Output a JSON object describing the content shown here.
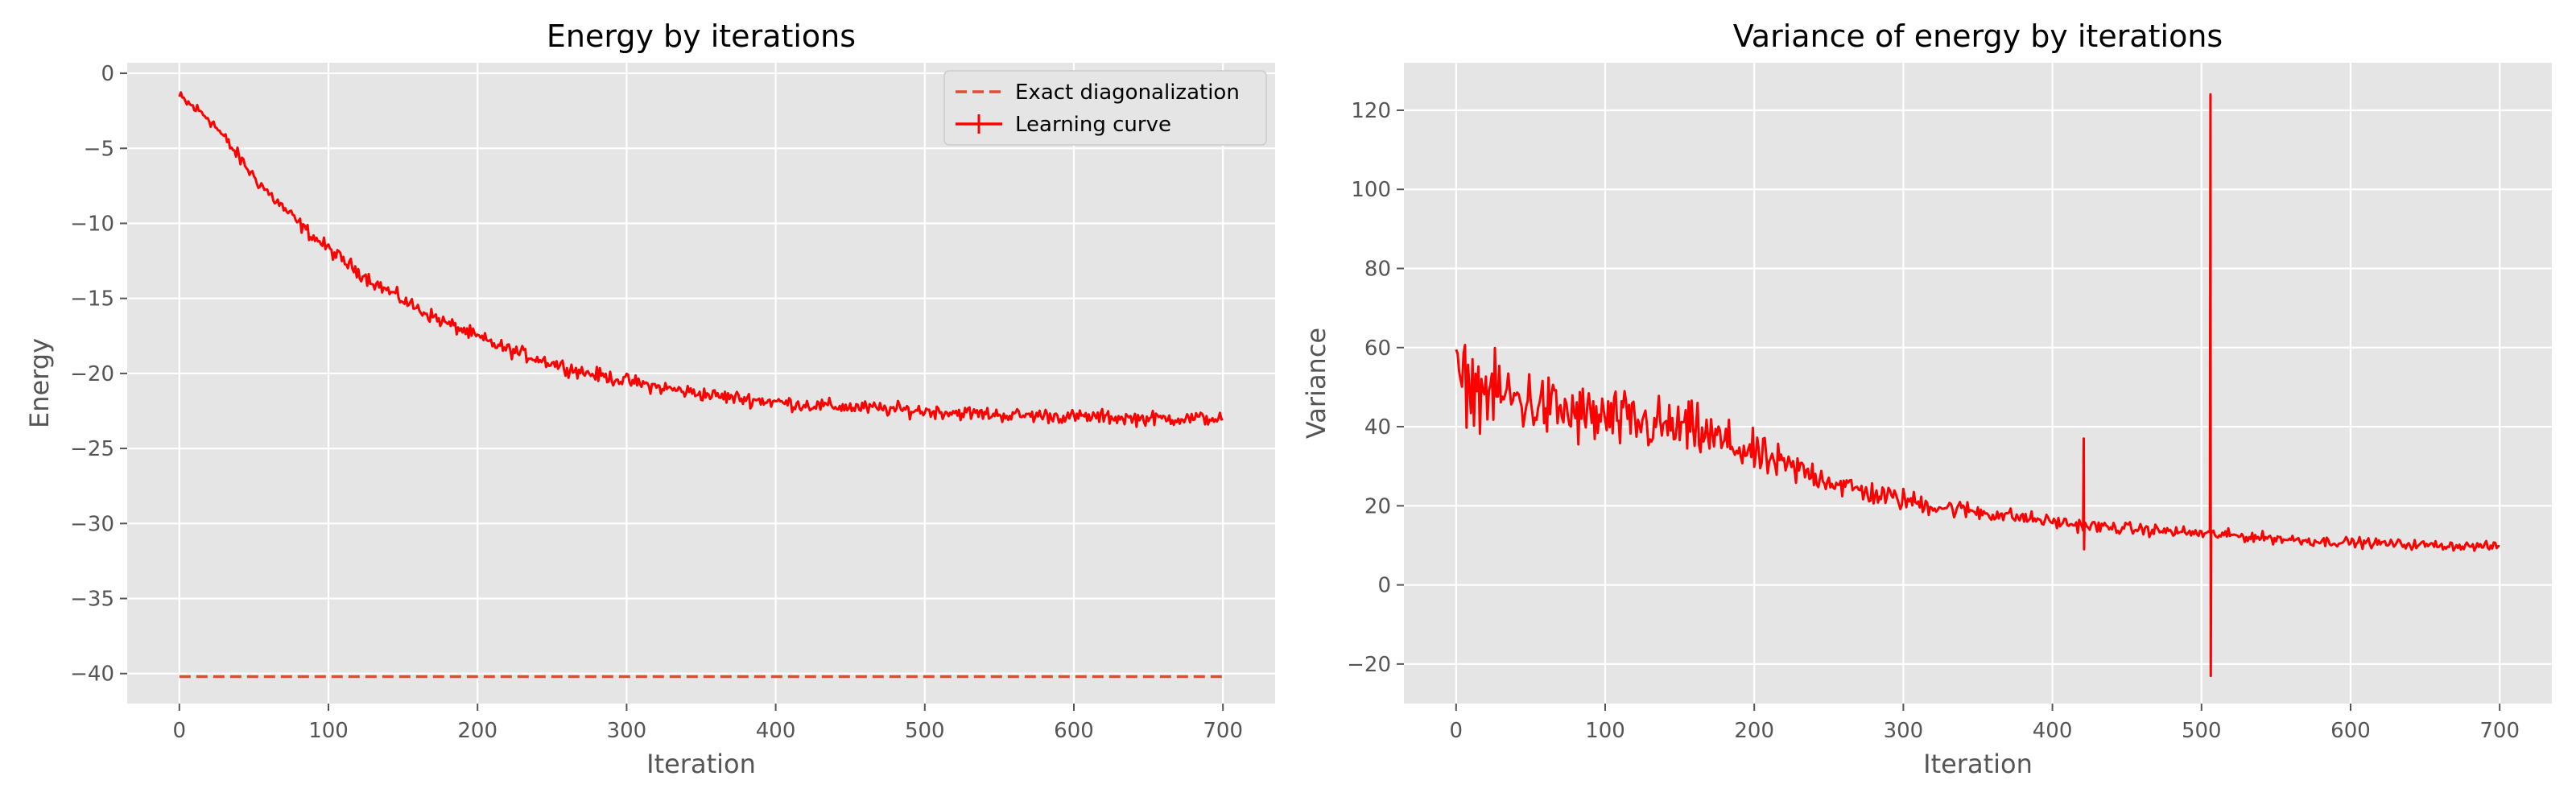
{
  "chart_data": [
    {
      "type": "line",
      "title": "Energy by iterations",
      "xlabel": "Iteration",
      "ylabel": "Energy",
      "xlim": [
        -35,
        735
      ],
      "ylim": [
        -42,
        0.7
      ],
      "xticks": [
        0,
        100,
        200,
        300,
        400,
        500,
        600,
        700
      ],
      "yticks": [
        0,
        -5,
        -10,
        -15,
        -20,
        -25,
        -30,
        -35,
        -40
      ],
      "xtick_labels": [
        "0",
        "100",
        "200",
        "300",
        "400",
        "500",
        "600",
        "700"
      ],
      "ytick_labels": [
        "0",
        "−5",
        "−10",
        "−15",
        "−20",
        "−25",
        "−30",
        "−35",
        "−40"
      ],
      "grid": true,
      "legend": "top-right",
      "series": [
        {
          "name": "Exact diagonalization",
          "style": "dashed",
          "color": "#e24a33",
          "x": [
            0,
            700
          ],
          "y": [
            -40.2,
            -40.2
          ]
        },
        {
          "name": "Learning curve",
          "style": "solid-errorbar",
          "color": "#ff0000",
          "x": [
            0,
            10,
            20,
            30,
            40,
            50,
            60,
            70,
            80,
            90,
            100,
            110,
            120,
            130,
            140,
            150,
            160,
            170,
            180,
            190,
            200,
            210,
            220,
            230,
            240,
            250,
            260,
            270,
            280,
            290,
            300,
            320,
            340,
            360,
            380,
            400,
            420,
            440,
            460,
            480,
            500,
            520,
            540,
            560,
            580,
            600,
            620,
            640,
            660,
            680,
            700
          ],
          "y": [
            -1.6,
            -2.3,
            -3.0,
            -4.3,
            -5.6,
            -6.9,
            -8.0,
            -9.0,
            -10.0,
            -10.9,
            -11.7,
            -12.5,
            -13.2,
            -13.9,
            -14.5,
            -15.1,
            -15.7,
            -16.2,
            -16.7,
            -17.1,
            -17.6,
            -18.0,
            -18.4,
            -18.7,
            -19.0,
            -19.3,
            -19.6,
            -19.9,
            -20.1,
            -20.3,
            -20.5,
            -20.9,
            -21.2,
            -21.5,
            -21.7,
            -21.9,
            -22.1,
            -22.2,
            -22.3,
            -22.4,
            -22.5,
            -22.6,
            -22.7,
            -22.8,
            -22.8,
            -22.9,
            -22.9,
            -23.0,
            -23.0,
            -23.0,
            -23.0
          ],
          "noise": 0.35
        }
      ]
    },
    {
      "type": "line",
      "title": "Variance of energy by iterations",
      "xlabel": "Iteration",
      "ylabel": "Variance",
      "xlim": [
        -35,
        735
      ],
      "ylim": [
        -30,
        132
      ],
      "xticks": [
        0,
        100,
        200,
        300,
        400,
        500,
        600,
        700
      ],
      "yticks": [
        -20,
        0,
        20,
        40,
        60,
        80,
        100,
        120
      ],
      "xtick_labels": [
        "0",
        "100",
        "200",
        "300",
        "400",
        "500",
        "600",
        "700"
      ],
      "ytick_labels": [
        "−20",
        "0",
        "20",
        "40",
        "60",
        "80",
        "100",
        "120"
      ],
      "grid": true,
      "series": [
        {
          "color": "#ff0000",
          "style": "solid",
          "x": [
            0,
            20,
            40,
            60,
            80,
            100,
            120,
            140,
            160,
            180,
            200,
            220,
            240,
            260,
            280,
            300,
            320,
            340,
            360,
            380,
            400,
            420,
            440,
            460,
            480,
            500,
            520,
            540,
            560,
            580,
            600,
            620,
            640,
            660,
            680,
            700
          ],
          "y": [
            52,
            49,
            47,
            45,
            43,
            42,
            41,
            40,
            39,
            36,
            33,
            30,
            28,
            25,
            23,
            21.5,
            20,
            19,
            18,
            17,
            16,
            15,
            14.5,
            14,
            13.5,
            13,
            12.5,
            12,
            11.5,
            11,
            10.8,
            10.5,
            10.2,
            10,
            9.8,
            9.7
          ],
          "noise": [
            [
              0,
              7
            ],
            [
              160,
              5
            ],
            [
              250,
              2.5
            ],
            [
              400,
              1.2
            ],
            [
              700,
              0.8
            ]
          ],
          "spikes": [
            {
              "x": 421,
              "high": 37,
              "low": 9
            },
            {
              "x": 506,
              "high": 124,
              "low": -23
            }
          ]
        }
      ]
    }
  ]
}
